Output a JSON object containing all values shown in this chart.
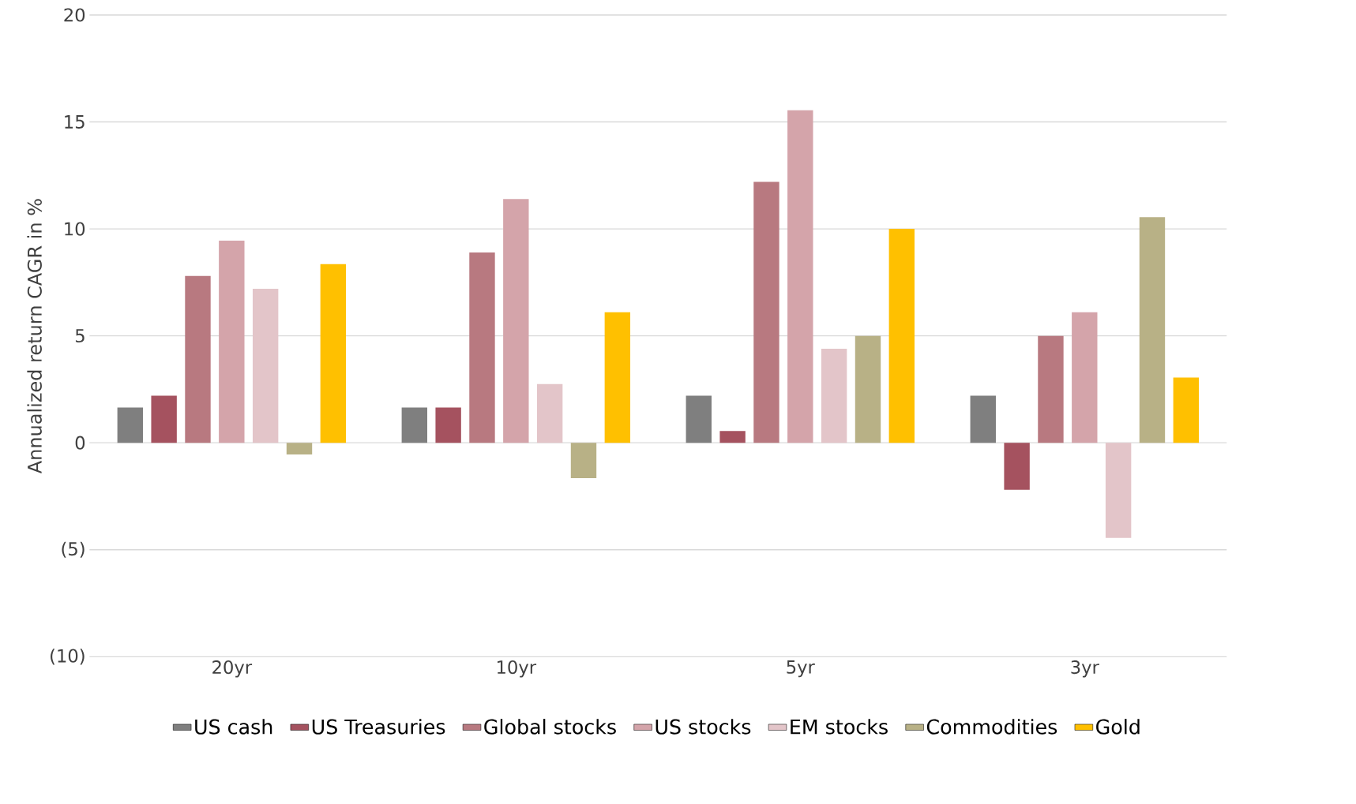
{
  "chart_data": {
    "type": "bar",
    "ylabel": "Annualized return CAGR in %",
    "categories": [
      "20yr",
      "10yr",
      "5yr",
      "3yr"
    ],
    "series": [
      {
        "name": "US cash",
        "color": "#7f7f7f",
        "values": [
          1.65,
          1.65,
          2.2,
          2.2
        ]
      },
      {
        "name": "US Treasuries",
        "color": "#a5525f",
        "values": [
          2.2,
          1.65,
          0.55,
          -2.2
        ]
      },
      {
        "name": "Global stocks",
        "color": "#b87980",
        "values": [
          7.8,
          8.9,
          12.2,
          5.0
        ]
      },
      {
        "name": "US stocks",
        "color": "#d4a4aa",
        "values": [
          9.45,
          11.4,
          15.55,
          6.1
        ]
      },
      {
        "name": "EM stocks",
        "color": "#e3c5c9",
        "values": [
          7.2,
          2.75,
          4.4,
          -4.45
        ]
      },
      {
        "name": "Commodities",
        "color": "#b8b186",
        "values": [
          -0.55,
          -1.65,
          5.0,
          10.55
        ]
      },
      {
        "name": "Gold",
        "color": "#ffc000",
        "values": [
          8.35,
          6.1,
          10.0,
          3.05
        ]
      }
    ],
    "ylim": [
      -10,
      20
    ],
    "yticks": [
      {
        "value": -10,
        "label": "(10)"
      },
      {
        "value": -5,
        "label": "(5)"
      },
      0,
      5,
      10,
      15,
      20
    ],
    "grid": "y",
    "legend": "bottom"
  }
}
